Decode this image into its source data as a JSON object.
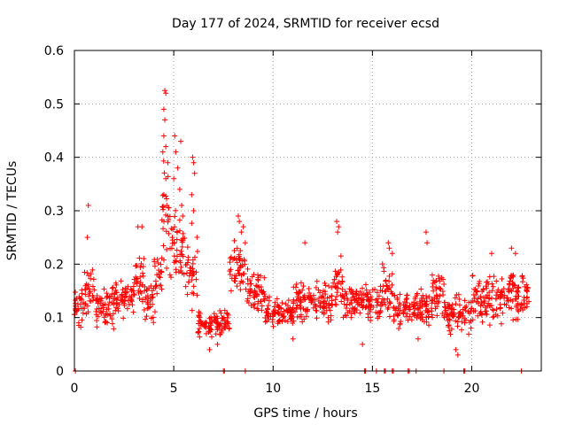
{
  "chart_data": {
    "type": "scatter",
    "title": "Day 177 of 2024, SRMTID for receiver ecsd",
    "xlabel": "GPS time / hours",
    "ylabel": "SRMTID / TECUs",
    "xlim": [
      0,
      23.5
    ],
    "ylim": [
      0,
      0.6
    ],
    "xticks": [
      0,
      5,
      10,
      15,
      20
    ],
    "xtick_labels": [
      "0",
      "5",
      "10",
      "15",
      "20"
    ],
    "yticks": [
      0,
      0.1,
      0.2,
      0.3,
      0.4,
      0.5,
      0.6
    ],
    "ytick_labels": [
      "0",
      "0.1",
      "0.2",
      "0.3",
      "0.4",
      "0.5",
      "0.6"
    ],
    "grid": true,
    "marker": "+",
    "color": "#ff0000",
    "series": [
      {
        "name": "SRMTID",
        "segments": [
          {
            "x": [
              0.0,
              0.5
            ],
            "base": 0.12,
            "spread": 0.05
          },
          {
            "x": [
              0.5,
              1.0
            ],
            "base": 0.15,
            "spread": 0.06
          },
          {
            "x": [
              1.0,
              2.0
            ],
            "base": 0.12,
            "spread": 0.05
          },
          {
            "x": [
              2.0,
              3.0
            ],
            "base": 0.14,
            "spread": 0.05
          },
          {
            "x": [
              3.0,
              3.5
            ],
            "base": 0.17,
            "spread": 0.07
          },
          {
            "x": [
              3.5,
              4.0
            ],
            "base": 0.13,
            "spread": 0.05
          },
          {
            "x": [
              4.0,
              4.4
            ],
            "base": 0.17,
            "spread": 0.07
          },
          {
            "x": [
              4.4,
              4.8
            ],
            "base": 0.3,
            "spread": 0.15
          },
          {
            "x": [
              4.8,
              5.6
            ],
            "base": 0.23,
            "spread": 0.1
          },
          {
            "x": [
              5.6,
              6.2
            ],
            "base": 0.19,
            "spread": 0.1
          },
          {
            "x": [
              6.2,
              7.8
            ],
            "base": 0.09,
            "spread": 0.03
          },
          {
            "x": [
              7.8,
              8.6
            ],
            "base": 0.19,
            "spread": 0.07
          },
          {
            "x": [
              8.6,
              9.6
            ],
            "base": 0.15,
            "spread": 0.05
          },
          {
            "x": [
              9.6,
              11.0
            ],
            "base": 0.11,
            "spread": 0.04
          },
          {
            "x": [
              11.0,
              13.0
            ],
            "base": 0.13,
            "spread": 0.05
          },
          {
            "x": [
              13.0,
              13.5
            ],
            "base": 0.16,
            "spread": 0.07
          },
          {
            "x": [
              13.5,
              15.5
            ],
            "base": 0.13,
            "spread": 0.05
          },
          {
            "x": [
              15.5,
              16.0
            ],
            "base": 0.16,
            "spread": 0.07
          },
          {
            "x": [
              16.0,
              18.0
            ],
            "base": 0.12,
            "spread": 0.05
          },
          {
            "x": [
              18.0,
              18.6
            ],
            "base": 0.15,
            "spread": 0.07
          },
          {
            "x": [
              18.6,
              20.0
            ],
            "base": 0.11,
            "spread": 0.05
          },
          {
            "x": [
              20.0,
              21.5
            ],
            "base": 0.13,
            "spread": 0.06
          },
          {
            "x": [
              21.5,
              22.9
            ],
            "base": 0.14,
            "spread": 0.06
          }
        ],
        "peaks": [
          [
            0.7,
            0.31
          ],
          [
            0.65,
            0.25
          ],
          [
            3.2,
            0.27
          ],
          [
            3.4,
            0.27
          ],
          [
            4.55,
            0.525
          ],
          [
            4.6,
            0.52
          ],
          [
            4.5,
            0.49
          ],
          [
            4.55,
            0.47
          ],
          [
            4.5,
            0.44
          ],
          [
            4.6,
            0.42
          ],
          [
            4.45,
            0.41
          ],
          [
            4.7,
            0.39
          ],
          [
            4.6,
            0.36
          ],
          [
            4.5,
            0.33
          ],
          [
            4.65,
            0.31
          ],
          [
            4.7,
            0.29
          ],
          [
            5.05,
            0.44
          ],
          [
            5.1,
            0.41
          ],
          [
            5.2,
            0.38
          ],
          [
            5.35,
            0.43
          ],
          [
            5.0,
            0.36
          ],
          [
            5.3,
            0.34
          ],
          [
            5.4,
            0.31
          ],
          [
            5.45,
            0.29
          ],
          [
            5.95,
            0.4
          ],
          [
            6.0,
            0.39
          ],
          [
            6.05,
            0.37
          ],
          [
            5.9,
            0.33
          ],
          [
            6.0,
            0.3
          ],
          [
            8.25,
            0.29
          ],
          [
            8.3,
            0.28
          ],
          [
            8.5,
            0.27
          ],
          [
            8.4,
            0.26
          ],
          [
            8.6,
            0.24
          ],
          [
            13.2,
            0.28
          ],
          [
            13.3,
            0.27
          ],
          [
            13.25,
            0.26
          ],
          [
            11.6,
            0.24
          ],
          [
            15.8,
            0.24
          ],
          [
            15.85,
            0.23
          ],
          [
            16.0,
            0.22
          ],
          [
            17.7,
            0.26
          ],
          [
            17.75,
            0.24
          ],
          [
            22.0,
            0.23
          ],
          [
            21.0,
            0.22
          ],
          [
            22.2,
            0.22
          ]
        ],
        "lows": [
          [
            6.8,
            0.04
          ],
          [
            7.2,
            0.05
          ],
          [
            11.0,
            0.06
          ],
          [
            19.3,
            0.03
          ],
          [
            19.2,
            0.04
          ],
          [
            14.5,
            0.05
          ],
          [
            17.3,
            0.06
          ]
        ],
        "zeros": [
          0.05,
          7.5,
          7.55,
          8.6,
          14.6,
          14.65,
          15.2,
          15.6,
          15.65,
          16.0,
          16.05,
          16.8,
          16.85,
          17.2,
          18.6,
          19.6,
          19.65,
          22.5
        ]
      }
    ]
  }
}
